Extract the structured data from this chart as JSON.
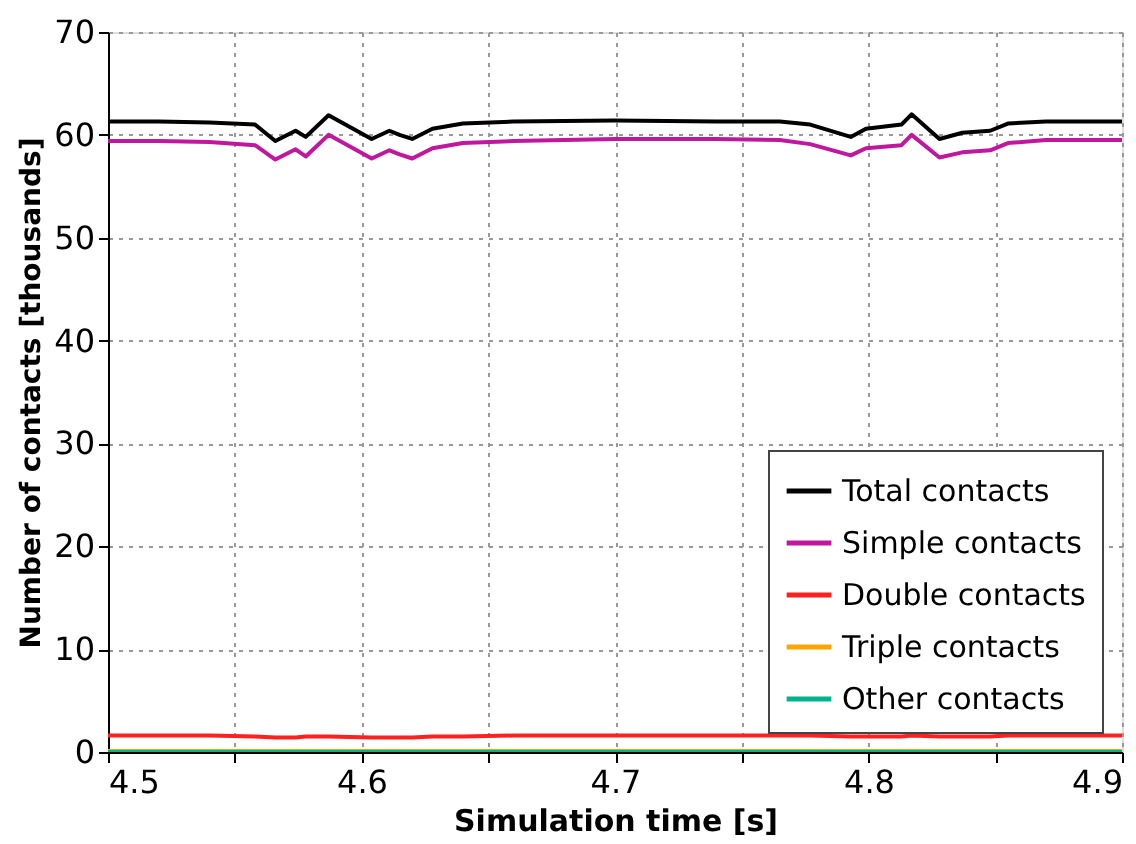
{
  "chart_data": {
    "type": "line",
    "xlabel": "Simulation time [s]",
    "ylabel": "Number of contacts [thousands]",
    "xlim": [
      4.5,
      4.9
    ],
    "ylim": [
      0,
      70
    ],
    "xticks": [
      4.5,
      {
        "value": 4.55,
        "label": null
      },
      4.6,
      {
        "value": 4.65,
        "label": null
      },
      4.7,
      {
        "value": 4.75,
        "label": null
      },
      4.8,
      {
        "value": 4.85,
        "label": null
      },
      4.9
    ],
    "yticks": [
      0,
      10,
      20,
      30,
      40,
      50,
      60,
      70
    ],
    "grid": true,
    "legend": "bottom right",
    "marker": "none",
    "line_style": "solid",
    "x": [
      4.5,
      4.52,
      4.54,
      4.558,
      4.566,
      4.574,
      4.578,
      4.587,
      4.604,
      4.611,
      4.615,
      4.62,
      4.628,
      4.64,
      4.66,
      4.7,
      4.74,
      4.765,
      4.777,
      4.793,
      4.799,
      4.813,
      4.817,
      4.828,
      4.837,
      4.848,
      4.855,
      4.87,
      4.9
    ],
    "series": [
      {
        "name": "Total contacts",
        "color": "#000000",
        "values": [
          61.3,
          61.3,
          61.2,
          61.0,
          59.4,
          60.4,
          59.8,
          61.9,
          59.6,
          60.4,
          60.0,
          59.6,
          60.6,
          61.1,
          61.3,
          61.4,
          61.3,
          61.3,
          61.0,
          59.8,
          60.6,
          61.0,
          62.0,
          59.6,
          60.2,
          60.4,
          61.1,
          61.3,
          61.3
        ]
      },
      {
        "name": "Simple contacts",
        "color": "#c0179f",
        "values": [
          59.4,
          59.4,
          59.3,
          59.0,
          57.6,
          58.6,
          57.9,
          60.0,
          57.7,
          58.5,
          58.1,
          57.7,
          58.7,
          59.2,
          59.4,
          59.6,
          59.6,
          59.5,
          59.1,
          58.0,
          58.7,
          59.0,
          60.0,
          57.8,
          58.3,
          58.5,
          59.2,
          59.5,
          59.5
        ]
      },
      {
        "name": "Double contacts",
        "color": "#ff2020",
        "values": [
          1.6,
          1.6,
          1.6,
          1.5,
          1.4,
          1.4,
          1.5,
          1.5,
          1.4,
          1.4,
          1.4,
          1.4,
          1.5,
          1.5,
          1.6,
          1.6,
          1.6,
          1.6,
          1.6,
          1.5,
          1.5,
          1.5,
          1.6,
          1.5,
          1.5,
          1.5,
          1.6,
          1.6,
          1.6
        ]
      },
      {
        "name": "Triple contacts",
        "color": "#ffa500",
        "values": [
          0.1,
          0.1,
          0.1,
          0.1,
          0.1,
          0.1,
          0.1,
          0.1,
          0.1,
          0.1,
          0.1,
          0.1,
          0.1,
          0.1,
          0.1,
          0.1,
          0.1,
          0.1,
          0.1,
          0.1,
          0.1,
          0.1,
          0.1,
          0.1,
          0.1,
          0.1,
          0.1,
          0.1,
          0.1
        ]
      },
      {
        "name": "Other contacts",
        "color": "#00b38a",
        "values": [
          0,
          0,
          0,
          0,
          0,
          0,
          0,
          0,
          0,
          0,
          0,
          0,
          0,
          0,
          0,
          0,
          0,
          0,
          0,
          0,
          0,
          0,
          0,
          0,
          0,
          0,
          0,
          0,
          0
        ]
      }
    ]
  }
}
